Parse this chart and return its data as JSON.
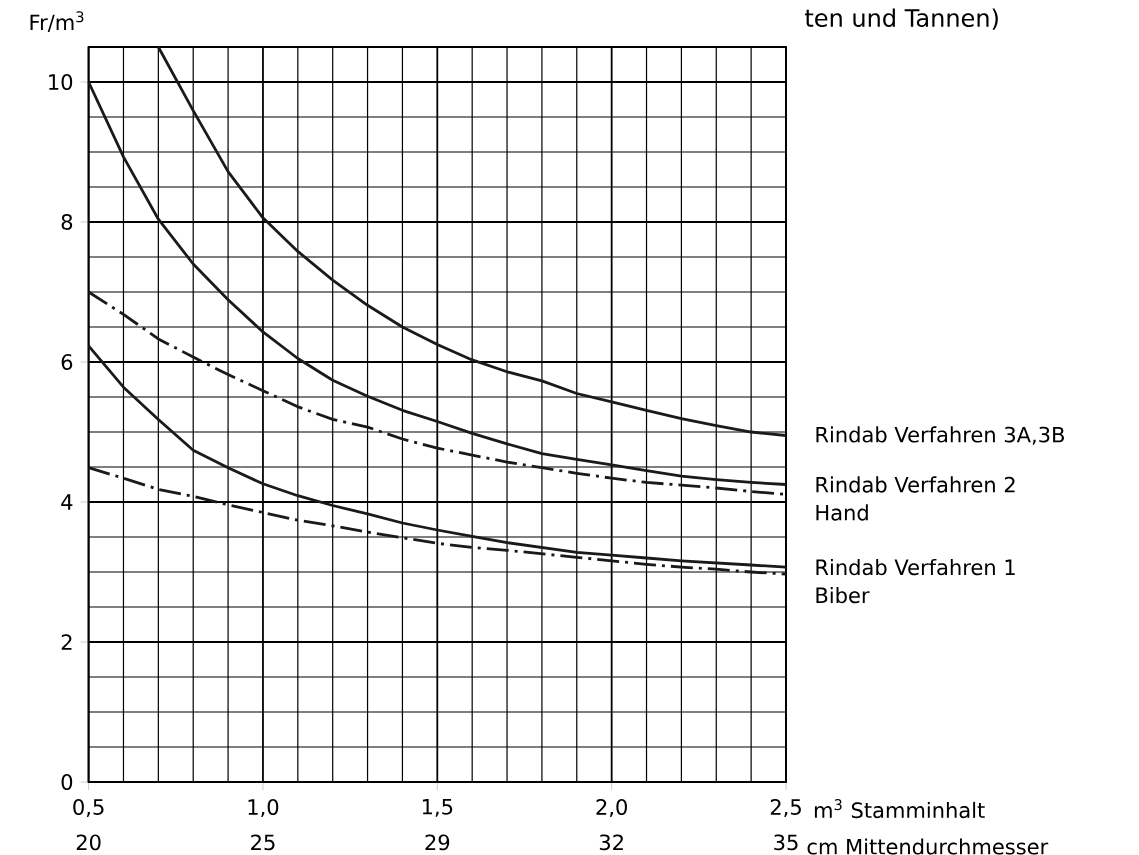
{
  "chart_data": {
    "type": "line",
    "title": "ten und Tannen)",
    "xlabel": "m$^{3}$ Stamminhalt",
    "ylabel": "Fr/m$^{3}$",
    "annotations": [
      "20",
      "25",
      "29",
      "32",
      "35",
      "cm Mittendurchmesser"
    ],
    "x": [
      0.5,
      0.6,
      0.7,
      0.8,
      0.9,
      1.0,
      1.1,
      1.2,
      1.3,
      1.4,
      1.5,
      1.6,
      1.7,
      1.8,
      1.9,
      2.0,
      2.1,
      2.2,
      2.3,
      2.4,
      2.5
    ],
    "series": [
      {
        "name": "Rindab Verfahren 3A,3B",
        "color": "#1a1a1a",
        "line_style": "solid",
        "x": [
          0.7,
          0.8,
          0.9,
          1.0,
          1.1,
          1.2,
          1.3,
          1.4,
          1.5,
          1.6,
          1.7,
          1.8,
          1.9,
          2.0,
          2.1,
          2.2,
          2.3,
          2.4,
          2.5
        ],
        "values": [
          10.5,
          9.59,
          8.72,
          8.06,
          7.58,
          7.17,
          6.81,
          6.5,
          6.25,
          6.03,
          5.86,
          5.73,
          5.55,
          5.43,
          5.31,
          5.19,
          5.09,
          5.0,
          4.95
        ]
      },
      {
        "name": "Rindab Verfahren 2",
        "color": "#1a1a1a",
        "line_style": "solid",
        "values": [
          10.0,
          8.93,
          8.04,
          7.4,
          6.89,
          6.43,
          6.05,
          5.74,
          5.51,
          5.31,
          5.15,
          4.98,
          4.83,
          4.69,
          4.61,
          4.53,
          4.45,
          4.37,
          4.32,
          4.28,
          4.25
        ]
      },
      {
        "name": "Hand",
        "color": "#1a1a1a",
        "line_style": "dashed",
        "values": [
          7.0,
          6.68,
          6.33,
          6.07,
          5.82,
          5.59,
          5.36,
          5.18,
          5.07,
          4.9,
          4.77,
          4.67,
          4.57,
          4.49,
          4.41,
          4.34,
          4.28,
          4.24,
          4.2,
          4.15,
          4.11
        ]
      },
      {
        "name": "Rindab Verfahren 1",
        "color": "#1a1a1a",
        "line_style": "solid",
        "values": [
          6.23,
          5.64,
          5.18,
          4.74,
          4.49,
          4.26,
          4.09,
          3.95,
          3.83,
          3.7,
          3.6,
          3.51,
          3.42,
          3.35,
          3.28,
          3.24,
          3.2,
          3.16,
          3.13,
          3.1,
          3.07
        ]
      },
      {
        "name": "Biber",
        "color": "#1a1a1a",
        "line_style": "dashed",
        "values": [
          4.49,
          4.34,
          4.18,
          4.08,
          3.96,
          3.85,
          3.74,
          3.66,
          3.57,
          3.49,
          3.41,
          3.35,
          3.31,
          3.26,
          3.21,
          3.16,
          3.11,
          3.07,
          3.04,
          3.0,
          2.97
        ]
      }
    ],
    "xlim": [
      0.5,
      2.5
    ],
    "ylim": [
      0,
      10.5
    ],
    "xticks": [
      {
        "value": 0.5,
        "label": "0,5"
      },
      {
        "value": 1.0,
        "label": "1,0"
      },
      {
        "value": 1.5,
        "label": "1,5"
      },
      {
        "value": 2.0,
        "label": "2,0"
      },
      {
        "value": 2.5,
        "label": "2,5"
      }
    ],
    "yticks": [
      0,
      2,
      4,
      6,
      8,
      10
    ],
    "grid": true,
    "marker": "none"
  }
}
